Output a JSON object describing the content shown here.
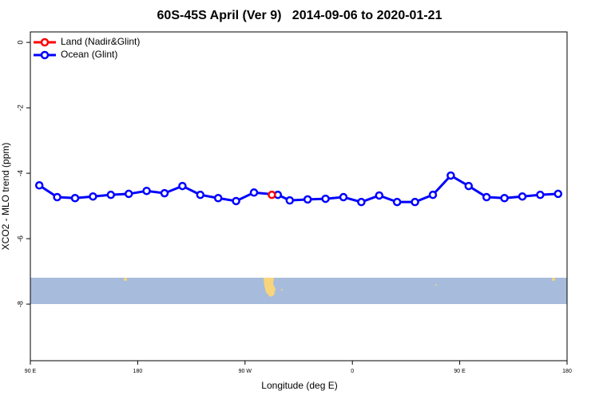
{
  "chart_data": {
    "type": "line",
    "title": "60S-45S April (Ver 9)   2014-09-06 to 2020-01-21",
    "x_label": "Longitude (deg E)",
    "y_label": "XCO2 - MLO trend (ppm)",
    "xlim": [
      90,
      540
    ],
    "ylim": [
      -9.73,
      0.32
    ],
    "xticks": [
      {
        "value": 90,
        "label": "90 E"
      },
      {
        "value": 180,
        "label": "180"
      },
      {
        "value": 270,
        "label": "90 W"
      },
      {
        "value": 360,
        "label": "0"
      },
      {
        "value": 450,
        "label": "90 E"
      },
      {
        "value": 540,
        "label": "180"
      }
    ],
    "yticks": [
      0,
      -2,
      -4,
      -6,
      -8
    ],
    "legend_position": "top-left",
    "series": [
      {
        "name": "Land (Nadir&Glint)",
        "color": "#ff0000",
        "x": [
          292.5
        ],
        "values": [
          -4.66
        ]
      },
      {
        "name": "Ocean (Glint)",
        "color": "#0000ff",
        "x": [
          97.5,
          112.5,
          127.5,
          142.5,
          157.5,
          172.5,
          187.5,
          202.5,
          217.5,
          232.5,
          247.5,
          262.5,
          277.5,
          297.5,
          307.5,
          322.5,
          337.5,
          352.5,
          367.5,
          382.5,
          397.5,
          412.5,
          427.5,
          442.5,
          457.5,
          472.5,
          487.5,
          502.5,
          517.5,
          532.5
        ],
        "values": [
          -4.37,
          -4.73,
          -4.76,
          -4.71,
          -4.66,
          -4.63,
          -4.54,
          -4.61,
          -4.39,
          -4.66,
          -4.76,
          -4.85,
          -4.59,
          -4.66,
          -4.83,
          -4.8,
          -4.78,
          -4.73,
          -4.88,
          -4.68,
          -4.88,
          -4.88,
          -4.66,
          -4.07,
          -4.39,
          -4.73,
          -4.76,
          -4.71,
          -4.66,
          -4.63
        ]
      }
    ]
  }
}
